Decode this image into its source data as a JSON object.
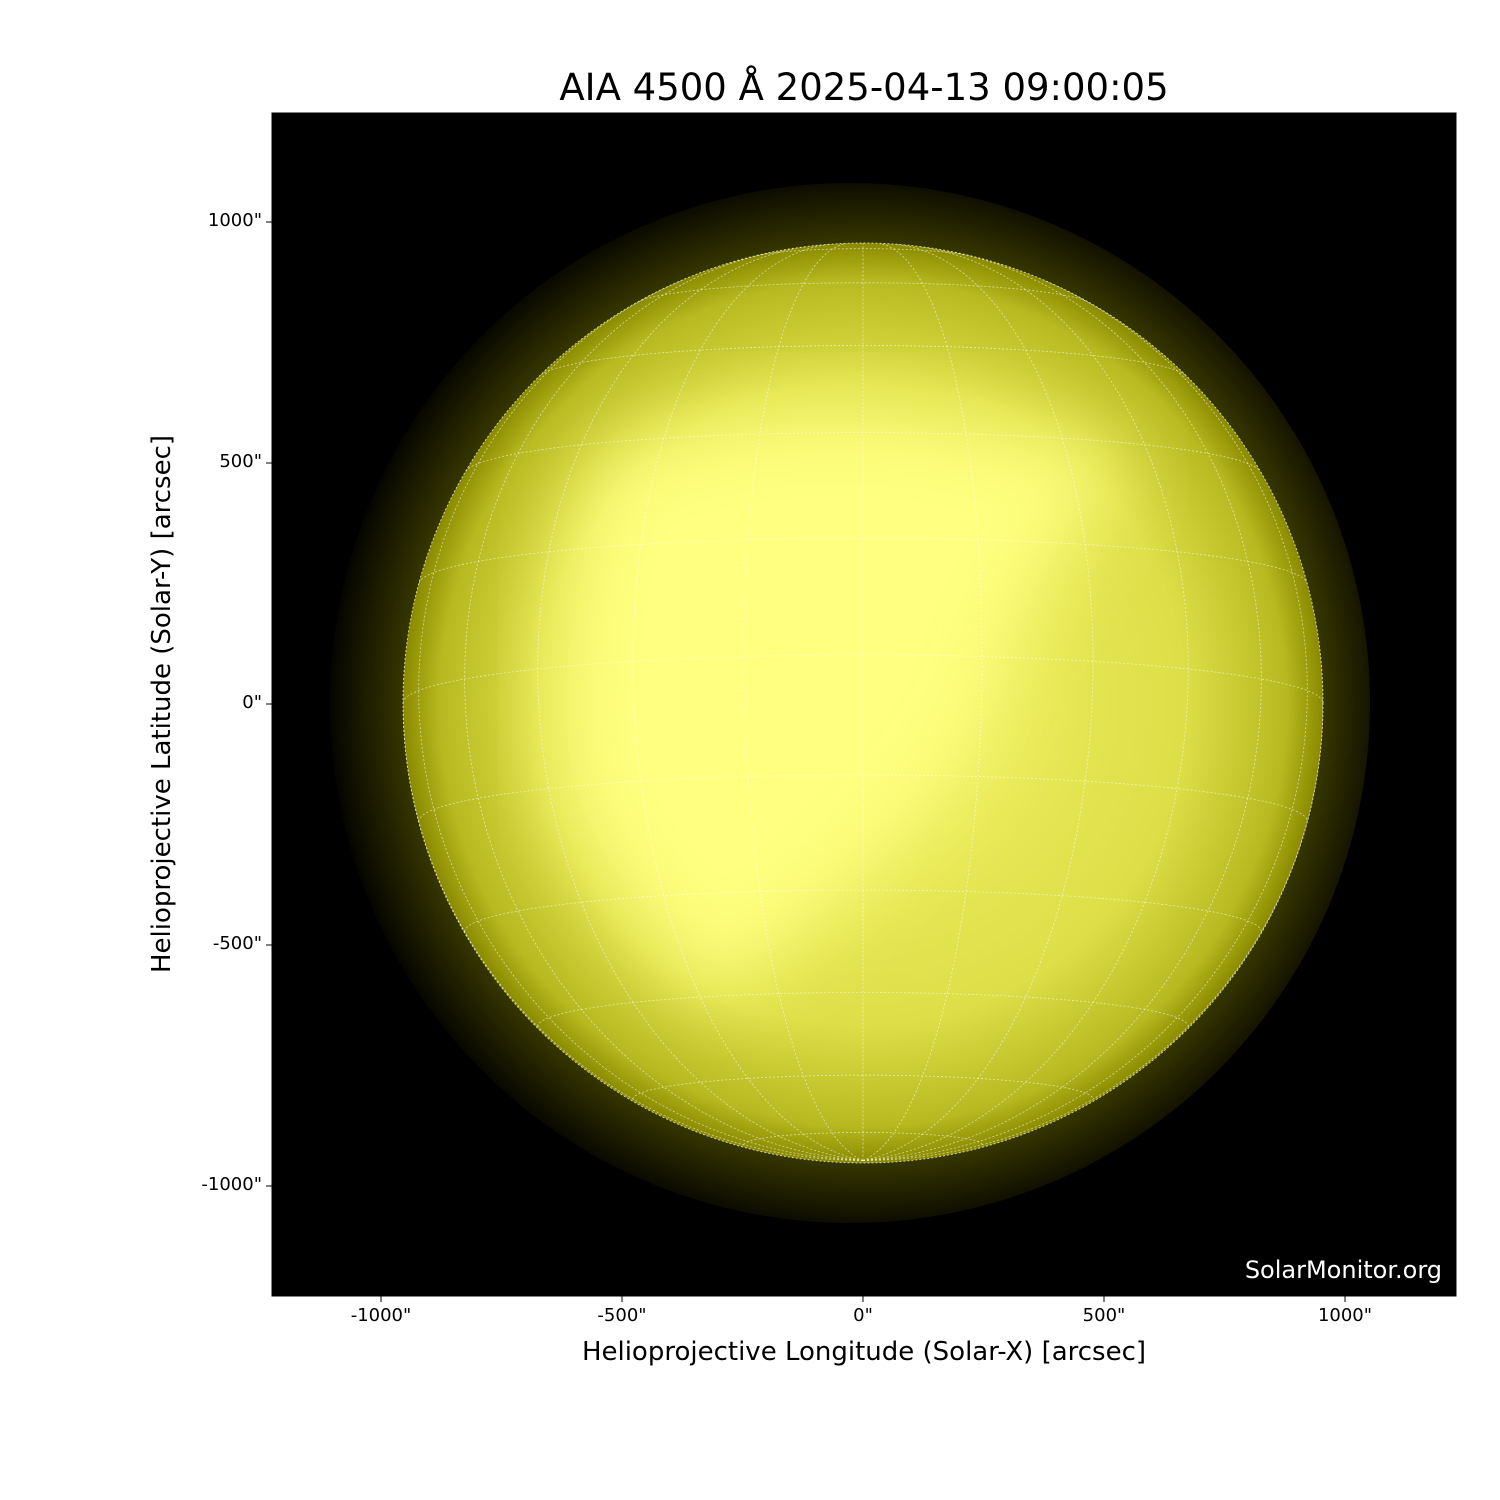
{
  "title": "AIA 4500 Å 2025-04-13 09:00:05",
  "xlabel": "Helioprojective Longitude (Solar-X) [arcsec]",
  "ylabel": "Helioprojective Latitude (Solar-Y) [arcsec]",
  "x_ticks": [
    "-1000\"",
    "-500\"",
    "0\"",
    "500\"",
    "1000\""
  ],
  "y_ticks": [
    "1000\"",
    "500\"",
    "0\"",
    "-500\"",
    "-1000\""
  ],
  "watermark": "SolarMonitor.org",
  "colors": {
    "background": "#000000",
    "disk_bright": "#ffff80",
    "disk_limb": "#8a8a00",
    "grid": "#ffffff"
  }
}
